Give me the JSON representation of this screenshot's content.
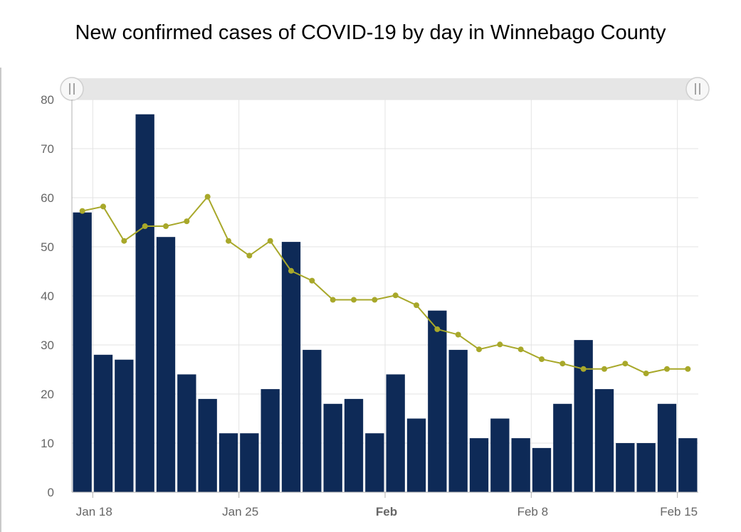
{
  "chart_data": {
    "type": "bar",
    "title": "New confirmed cases of COVID-19 by day in Winnebago County",
    "xlabel": "",
    "ylabel": "",
    "ylim": [
      0,
      80
    ],
    "y_ticks": [
      0,
      10,
      20,
      30,
      40,
      50,
      60,
      70,
      80
    ],
    "x_tick_labels": [
      {
        "label": "Jan 18",
        "date": "2021-01-18",
        "bold": false
      },
      {
        "label": "Jan 25",
        "date": "2021-01-25",
        "bold": false
      },
      {
        "label": "Feb",
        "date": "2021-02-01",
        "bold": true
      },
      {
        "label": "Feb 8",
        "date": "2021-02-08",
        "bold": false
      },
      {
        "label": "Feb 15",
        "date": "2021-02-15",
        "bold": false
      }
    ],
    "grid": true,
    "legend": "none",
    "range_selector": true,
    "categories": [
      "2021-01-17",
      "2021-01-18",
      "2021-01-19",
      "2021-01-20",
      "2021-01-21",
      "2021-01-22",
      "2021-01-23",
      "2021-01-24",
      "2021-01-25",
      "2021-01-26",
      "2021-01-27",
      "2021-01-28",
      "2021-01-29",
      "2021-01-30",
      "2021-01-31",
      "2021-02-01",
      "2021-02-02",
      "2021-02-03",
      "2021-02-04",
      "2021-02-05",
      "2021-02-06",
      "2021-02-07",
      "2021-02-08",
      "2021-02-09",
      "2021-02-10",
      "2021-02-11",
      "2021-02-12",
      "2021-02-13",
      "2021-02-14",
      "2021-02-15"
    ],
    "series": [
      {
        "type": "bar",
        "color": "#0e2a57",
        "values": [
          57,
          28,
          27,
          77,
          52,
          24,
          19,
          12,
          12,
          21,
          51,
          29,
          18,
          19,
          12,
          24,
          15,
          37,
          29,
          11,
          15,
          11,
          9,
          18,
          31,
          21,
          10,
          10,
          18,
          11
        ]
      },
      {
        "type": "line",
        "color": "#a8a82a",
        "values": [
          57.3,
          58.2,
          51.2,
          54.2,
          54.2,
          55.2,
          60.2,
          51.2,
          48.2,
          51.2,
          45.1,
          43.1,
          39.2,
          39.2,
          39.2,
          40.1,
          38.1,
          33.2,
          32.1,
          29.1,
          30.1,
          29.1,
          27.1,
          26.2,
          25.1,
          25.1,
          26.2,
          24.2,
          25.1,
          25.1
        ]
      }
    ]
  }
}
